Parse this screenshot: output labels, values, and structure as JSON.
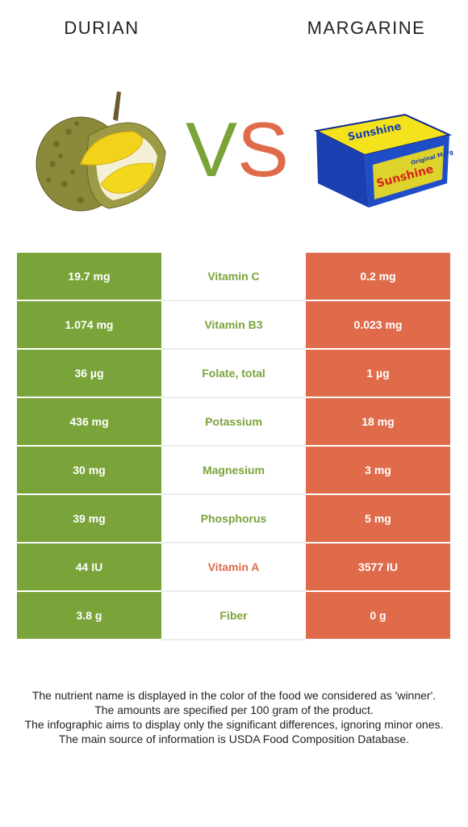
{
  "header": {
    "left_food": "DURIAN",
    "right_food": "MARGARINE",
    "vs_v": "V",
    "vs_s": "S"
  },
  "colors": {
    "left": "#7aa33a",
    "right": "#e06b4b"
  },
  "images": {
    "left_icon": "durian-image",
    "right_icon": "margarine-package-image",
    "package_text_1": "Sunshine",
    "package_text_2": "Original Margarine"
  },
  "rows": [
    {
      "left": "19.7 mg",
      "nutrient": "Vitamin C",
      "right": "0.2 mg",
      "winner": "left"
    },
    {
      "left": "1.074 mg",
      "nutrient": "Vitamin B3",
      "right": "0.023 mg",
      "winner": "left"
    },
    {
      "left": "36 µg",
      "nutrient": "Folate, total",
      "right": "1 µg",
      "winner": "left"
    },
    {
      "left": "436 mg",
      "nutrient": "Potassium",
      "right": "18 mg",
      "winner": "left"
    },
    {
      "left": "30 mg",
      "nutrient": "Magnesium",
      "right": "3 mg",
      "winner": "left"
    },
    {
      "left": "39 mg",
      "nutrient": "Phosphorus",
      "right": "5 mg",
      "winner": "left"
    },
    {
      "left": "44 IU",
      "nutrient": "Vitamin A",
      "right": "3577 IU",
      "winner": "right"
    },
    {
      "left": "3.8 g",
      "nutrient": "Fiber",
      "right": "0 g",
      "winner": "left"
    }
  ],
  "notes": [
    "The nutrient name is displayed in the color of the food we considered as 'winner'.",
    "The amounts are specified per 100 gram of the product.",
    "The infographic aims to display only the significant differences, ignoring minor ones.",
    "The main source of information is USDA Food Composition Database."
  ]
}
